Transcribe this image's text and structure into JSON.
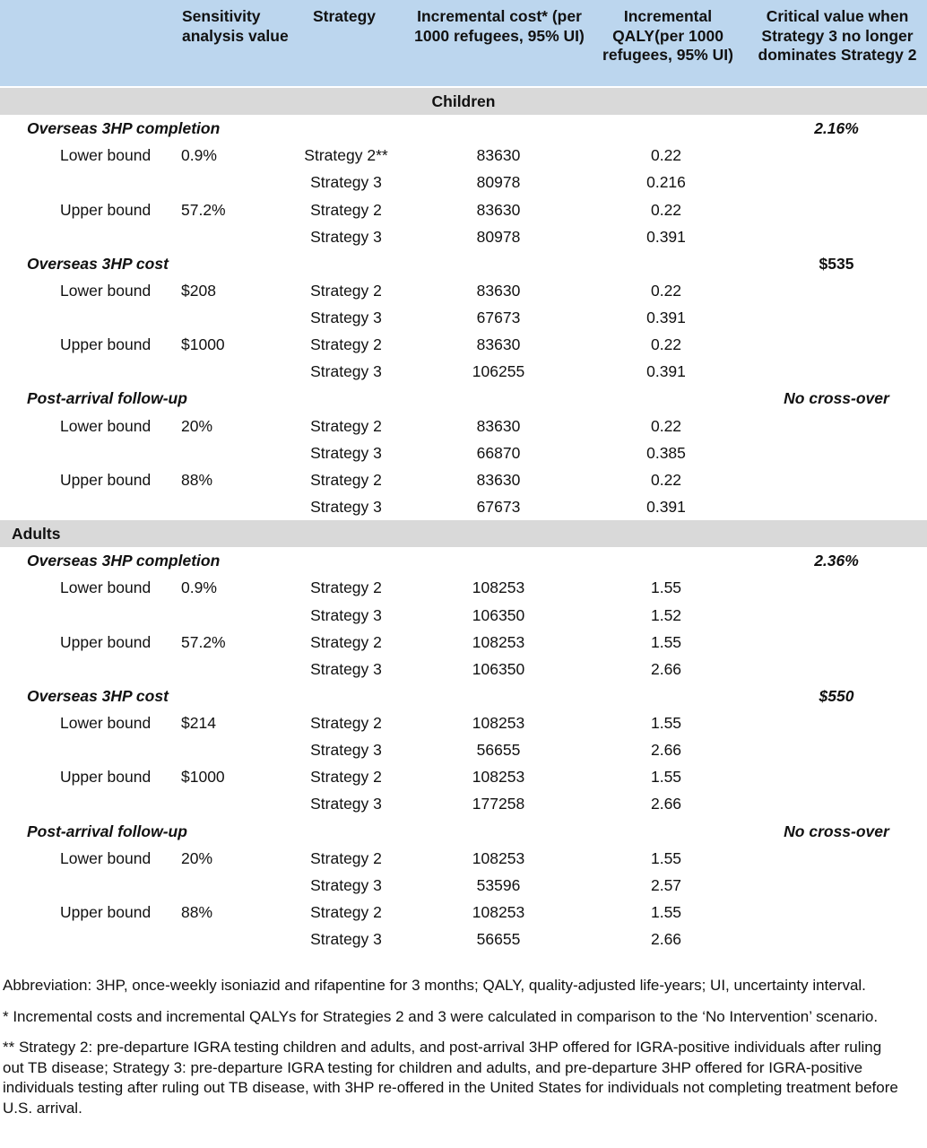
{
  "headers": {
    "sensitivity": "Sensitivity analysis value",
    "strategy": "Strategy",
    "cost": "Incremental cost* (per 1000 refugees, 95% UI)",
    "qaly": "Incremental QALY(per 1000 refugees, 95% UI)",
    "critical": "Critical value when Strategy 3 no longer dominates Strategy 2"
  },
  "groups": [
    {
      "label": "Children",
      "params": [
        {
          "name": "Overseas 3HP completion",
          "critical": "2.16%",
          "critical_italic": true,
          "bounds": [
            {
              "bound": "Lower bound",
              "value": "0.9%",
              "rows": [
                {
                  "strategy": "Strategy 2**",
                  "cost": "83630",
                  "qaly": "0.22"
                },
                {
                  "strategy": "Strategy 3",
                  "cost": "80978",
                  "qaly": "0.216"
                }
              ]
            },
            {
              "bound": "Upper bound",
              "value": "57.2%",
              "rows": [
                {
                  "strategy": "Strategy 2",
                  "cost": "83630",
                  "qaly": "0.22"
                },
                {
                  "strategy": "Strategy 3",
                  "cost": "80978",
                  "qaly": "0.391"
                }
              ]
            }
          ]
        },
        {
          "name": "Overseas 3HP cost",
          "critical": "$535",
          "critical_italic": false,
          "bounds": [
            {
              "bound": "Lower bound",
              "value": "$208",
              "rows": [
                {
                  "strategy": "Strategy 2",
                  "cost": "83630",
                  "qaly": "0.22"
                },
                {
                  "strategy": "Strategy 3",
                  "cost": "67673",
                  "qaly": "0.391"
                }
              ]
            },
            {
              "bound": "Upper bound",
              "value": "$1000",
              "rows": [
                {
                  "strategy": "Strategy 2",
                  "cost": "83630",
                  "qaly": "0.22"
                },
                {
                  "strategy": "Strategy 3",
                  "cost": "106255",
                  "qaly": "0.391"
                }
              ]
            }
          ]
        },
        {
          "name": "Post-arrival follow-up",
          "critical": "No cross-over",
          "critical_italic": true,
          "bounds": [
            {
              "bound": "Lower bound",
              "value": "20%",
              "rows": [
                {
                  "strategy": "Strategy 2",
                  "cost": "83630",
                  "qaly": "0.22"
                },
                {
                  "strategy": "Strategy 3",
                  "cost": "66870",
                  "qaly": "0.385"
                }
              ]
            },
            {
              "bound": "Upper bound",
              "value": "88%",
              "rows": [
                {
                  "strategy": "Strategy 2",
                  "cost": "83630",
                  "qaly": "0.22"
                },
                {
                  "strategy": "Strategy 3",
                  "cost": "67673",
                  "qaly": "0.391"
                }
              ]
            }
          ]
        }
      ]
    },
    {
      "label": "Adults",
      "params": [
        {
          "name": "Overseas 3HP completion",
          "critical": "2.36%",
          "critical_italic": true,
          "bounds": [
            {
              "bound": "Lower bound",
              "value": "0.9%",
              "rows": [
                {
                  "strategy": "Strategy 2",
                  "cost": "108253",
                  "qaly": "1.55"
                },
                {
                  "strategy": "Strategy 3",
                  "cost": "106350",
                  "qaly": "1.52"
                }
              ]
            },
            {
              "bound": "Upper bound",
              "value": "57.2%",
              "rows": [
                {
                  "strategy": "Strategy 2",
                  "cost": "108253",
                  "qaly": "1.55"
                },
                {
                  "strategy": "Strategy 3",
                  "cost": "106350",
                  "qaly": "2.66"
                }
              ]
            }
          ]
        },
        {
          "name": "Overseas 3HP cost",
          "critical": "$550",
          "critical_italic": true,
          "bounds": [
            {
              "bound": "Lower bound",
              "value": "$214",
              "rows": [
                {
                  "strategy": "Strategy 2",
                  "cost": "108253",
                  "qaly": "1.55"
                },
                {
                  "strategy": "Strategy 3",
                  "cost": "56655",
                  "qaly": "2.66"
                }
              ]
            },
            {
              "bound": "Upper bound",
              "value": "$1000",
              "rows": [
                {
                  "strategy": "Strategy 2",
                  "cost": "108253",
                  "qaly": "1.55"
                },
                {
                  "strategy": "Strategy 3",
                  "cost": "177258",
                  "qaly": "2.66"
                }
              ]
            }
          ]
        },
        {
          "name": "Post-arrival follow-up",
          "critical": "No cross-over",
          "critical_italic": true,
          "bounds": [
            {
              "bound": "Lower bound",
              "value": "20%",
              "rows": [
                {
                  "strategy": "Strategy 2",
                  "cost": "108253",
                  "qaly": "1.55"
                },
                {
                  "strategy": "Strategy 3",
                  "cost": "53596",
                  "qaly": "2.57"
                }
              ]
            },
            {
              "bound": "Upper bound",
              "value": "88%",
              "rows": [
                {
                  "strategy": "Strategy 2",
                  "cost": "108253",
                  "qaly": "1.55"
                },
                {
                  "strategy": "Strategy 3",
                  "cost": "56655",
                  "qaly": "2.66"
                }
              ]
            }
          ]
        }
      ]
    }
  ],
  "footnotes": [
    "Abbreviation: 3HP, once-weekly isoniazid and rifapentine for 3 months; QALY, quality-adjusted life-years; UI, uncertainty interval.",
    "* Incremental costs and incremental QALYs for Strategies 2 and 3 were calculated in comparison to the ‘No Intervention’ scenario.",
    "** Strategy 2: pre-departure IGRA testing children and adults, and post-arrival 3HP offered for IGRA-positive individuals after ruling out TB disease; Strategy 3: pre-departure IGRA testing for children and adults, and pre-departure 3HP offered for IGRA-positive individuals testing after ruling out TB disease, with 3HP re-offered in the United States for individuals not completing treatment before U.S. arrival."
  ]
}
